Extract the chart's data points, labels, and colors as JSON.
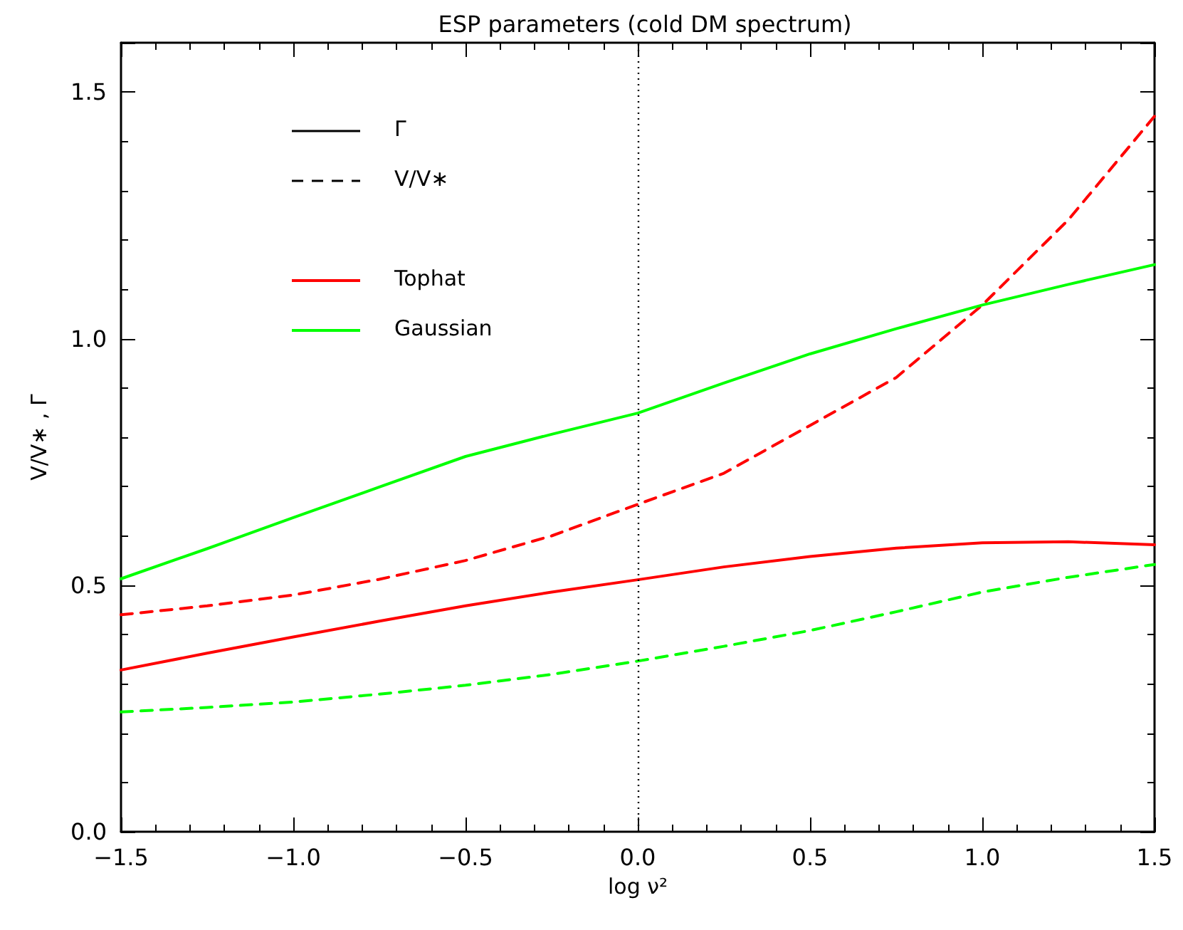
{
  "chart_data": {
    "type": "line",
    "title": "ESP parameters (cold DM spectrum)",
    "xlabel": "log ν²",
    "ylabel": "V/V∗ , Γ",
    "x": [
      -1.5,
      -1.25,
      -1.0,
      -0.75,
      -0.5,
      -0.25,
      0.0,
      0.25,
      0.5,
      0.75,
      1.0,
      1.25,
      1.5
    ],
    "series": [
      {
        "color": "#ff0000",
        "line_style": "solid",
        "values": [
          0.328,
          0.362,
          0.395,
          0.427,
          0.458,
          0.486,
          0.511,
          0.537,
          0.558,
          0.575,
          0.586,
          0.588,
          0.582
        ]
      },
      {
        "color": "#ff0000",
        "line_style": "dashed",
        "values": [
          0.44,
          0.458,
          0.48,
          0.512,
          0.55,
          0.6,
          0.664,
          0.727,
          0.824,
          0.921,
          1.068,
          1.241,
          1.451
        ]
      },
      {
        "color": "#00ff00",
        "line_style": "solid",
        "values": [
          0.513,
          0.574,
          0.637,
          0.699,
          0.761,
          0.806,
          0.849,
          0.91,
          0.969,
          1.02,
          1.068,
          1.11,
          1.15
        ]
      },
      {
        "color": "#00ff00",
        "line_style": "dashed",
        "values": [
          0.243,
          0.252,
          0.263,
          0.279,
          0.297,
          0.319,
          0.346,
          0.376,
          0.408,
          0.446,
          0.486,
          0.516,
          0.542
        ]
      }
    ],
    "xlim": [
      -1.5,
      1.5
    ],
    "xticks": [
      -1.5,
      {
        "value": -1,
        "label": "−1.0"
      },
      -0.5,
      {
        "value": 0,
        "label": "0.0"
      },
      0.5,
      {
        "value": 1,
        "label": "1.0"
      },
      1.5
    ],
    "ylim": [
      0,
      1.6
    ],
    "yticks": [
      {
        "value": 0,
        "label": "0.0"
      },
      0.5,
      {
        "value": 1,
        "label": "1.0"
      },
      1.5
    ],
    "ref_lines": [
      {
        "axis": "x",
        "value": 0,
        "color": "#000000",
        "line_style": "dotted"
      }
    ],
    "annotations": [
      "Γ",
      "V/V∗",
      "Tophat",
      "Gaussian"
    ],
    "grid": false,
    "marker": "none"
  }
}
